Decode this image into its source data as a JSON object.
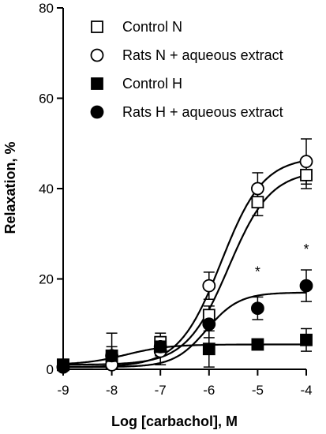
{
  "chart_data": {
    "type": "scatter",
    "title": "",
    "xlabel": "Log [carbachol], M",
    "ylabel": "Relaxation, %",
    "xlim": [
      -9,
      -4
    ],
    "ylim": [
      0,
      80
    ],
    "x_ticks": [
      "-9",
      "-8",
      "-7",
      "-6",
      "-5",
      "-4"
    ],
    "y_ticks": [
      "0",
      "20",
      "40",
      "60",
      "80"
    ],
    "legend_position": "top-right",
    "grid": false,
    "x": [
      -9,
      -8,
      -7,
      -6,
      -5,
      -4
    ],
    "series": [
      {
        "name": "Control N",
        "marker": "open-square",
        "values": [
          1,
          1.5,
          6,
          12,
          37,
          43
        ],
        "errors": [
          1,
          1.5,
          2,
          2,
          3,
          3
        ],
        "fit": {
          "bottom": 1,
          "top": 44,
          "logEC50": -5.6,
          "hill": 1
        }
      },
      {
        "name": "Rats N + aqueous extract",
        "marker": "open-circle",
        "values": [
          0.5,
          1,
          4,
          18.5,
          40,
          46
        ],
        "errors": [
          1,
          1.5,
          3,
          3,
          3.5,
          5
        ],
        "fit": {
          "bottom": 0.5,
          "top": 47,
          "logEC50": -5.75,
          "hill": 1
        }
      },
      {
        "name": "Control H",
        "marker": "filled-square",
        "values": [
          1,
          3,
          5,
          4.5,
          5.5,
          6.5
        ],
        "errors": [
          1,
          5,
          2,
          4,
          1,
          2.5
        ],
        "fit": {
          "bottom": 1,
          "top": 5.5,
          "logEC50": -7.7,
          "hill": 1
        }
      },
      {
        "name": "Rats H + aqueous extract",
        "marker": "filled-circle",
        "values": [
          0.5,
          3,
          5,
          10,
          13.5,
          18.5
        ],
        "errors": [
          0.5,
          2,
          2,
          3,
          2.5,
          3.5
        ],
        "fit": {
          "bottom": 0.5,
          "top": 17,
          "logEC50": -6.05,
          "hill": 1.3
        }
      }
    ],
    "annotations": [
      {
        "text": "*",
        "x": -5,
        "y": 20.5
      },
      {
        "text": "*",
        "x": -4,
        "y": 25.5
      }
    ]
  }
}
